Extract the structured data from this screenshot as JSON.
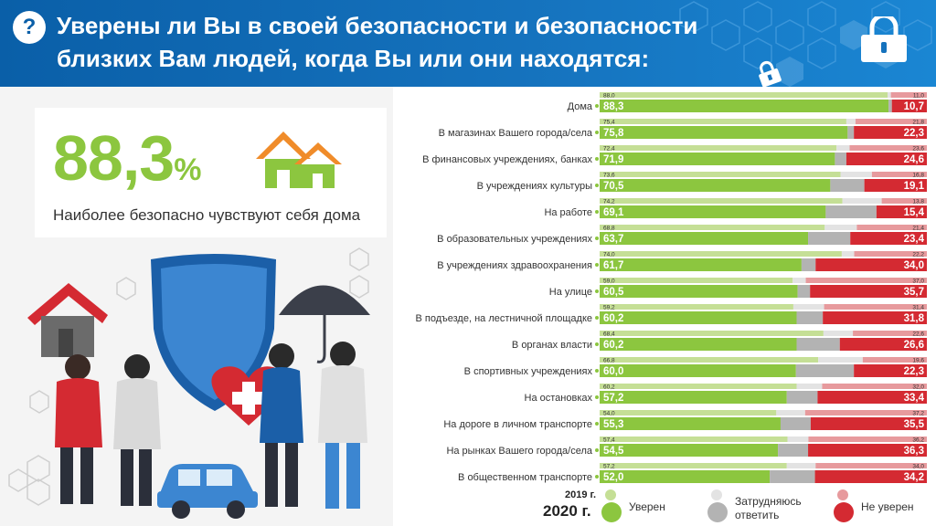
{
  "header": {
    "question_mark": "?",
    "title": "Уверены ли Вы в своей безопасности и безопасности близких Вам людей, когда Вы или они находятся:"
  },
  "highlight": {
    "number": "88,3",
    "percent_sign": "%",
    "caption": "Наиболее безопасно чувствуют себя дома"
  },
  "colors": {
    "header_blue": "#0a5fa8",
    "confident_2020": "#8cc63f",
    "confident_2019": "#c5df96",
    "unsure_2020": "#b3b3b3",
    "unsure_2019": "#e3e3e3",
    "not_confident_2020": "#d42a32",
    "not_confident_2019": "#e79a9d"
  },
  "chart_data": {
    "type": "bar",
    "orientation": "horizontal-stacked",
    "title": "Уверены ли Вы в своей безопасности и безопасности близких Вам людей, когда Вы или они находятся:",
    "years": [
      "2019 г.",
      "2020 г."
    ],
    "series_names": [
      "Уверен",
      "Затрудняюсь ответить",
      "Не уверен"
    ],
    "categories": [
      "Дома",
      "В магазинах Вашего города/села",
      "В финансовых учреждениях, банках",
      "В учреждениях культуры",
      "На работе",
      "В образовательных учреждениях",
      "В учреждениях здравоохранения",
      "На улице",
      "В подъезде, на лестничной площадке",
      "В органах власти",
      "В спортивных учреждениях",
      "На остановках",
      "На дороге в личном транспорте",
      "На рынках Вашего города/села",
      "В общественном транспорте"
    ],
    "confident_2019": [
      88.0,
      75.4,
      72.4,
      73.6,
      74.2,
      68.8,
      74.0,
      59.0,
      59.2,
      68.4,
      66.8,
      60.2,
      54.0,
      57.4,
      57.2
    ],
    "not_confident_2019": [
      11.0,
      21.8,
      23.6,
      16.8,
      13.8,
      21.4,
      22.2,
      37.0,
      31.4,
      22.6,
      19.6,
      32.0,
      37.2,
      36.2,
      34.0
    ],
    "confident_2020": [
      88.3,
      75.8,
      71.9,
      70.5,
      69.1,
      63.7,
      61.7,
      60.5,
      60.2,
      60.2,
      60.0,
      57.2,
      55.3,
      54.5,
      52.0
    ],
    "not_confident_2020": [
      10.7,
      22.3,
      24.6,
      19.1,
      15.4,
      23.4,
      34.0,
      35.7,
      31.8,
      26.6,
      22.3,
      33.4,
      35.5,
      36.3,
      34.2
    ],
    "labels_confident_2019": [
      "88,0",
      "75,4",
      "72,4",
      "73,6",
      "74,2",
      "68,8",
      "74,0",
      "59,0",
      "59,2",
      "68,4",
      "66,8",
      "60,2",
      "54,0",
      "57,4",
      "57,2"
    ],
    "labels_not_confident_2019": [
      "11,0",
      "21,8",
      "23,6",
      "16,8",
      "13,8",
      "21,4",
      "22,2",
      "37,0",
      "31,4",
      "22,6",
      "19,6",
      "32,0",
      "37,2",
      "36,2",
      "34,0"
    ],
    "labels_confident_2020": [
      "88,3",
      "75,8",
      "71,9",
      "70,5",
      "69,1",
      "63,7",
      "61,7",
      "60,5",
      "60,2",
      "60,2",
      "60,0",
      "57,2",
      "55,3",
      "54,5",
      "52,0"
    ],
    "labels_not_confident_2020": [
      "10,7",
      "22,3",
      "24,6",
      "19,1",
      "15,4",
      "23,4",
      "34,0",
      "35,7",
      "31,8",
      "26,6",
      "22,3",
      "33,4",
      "35,5",
      "36,3",
      "34,2"
    ],
    "xlim": [
      0,
      100
    ],
    "grid": false,
    "legend": "bottom"
  },
  "legend": {
    "year_2019": "2019 г.",
    "year_2020": "2020 г.",
    "confident": "Уверен",
    "unsure_line1": "Затрудняюсь",
    "unsure_line2": "ответить",
    "not_confident": "Не уверен"
  }
}
